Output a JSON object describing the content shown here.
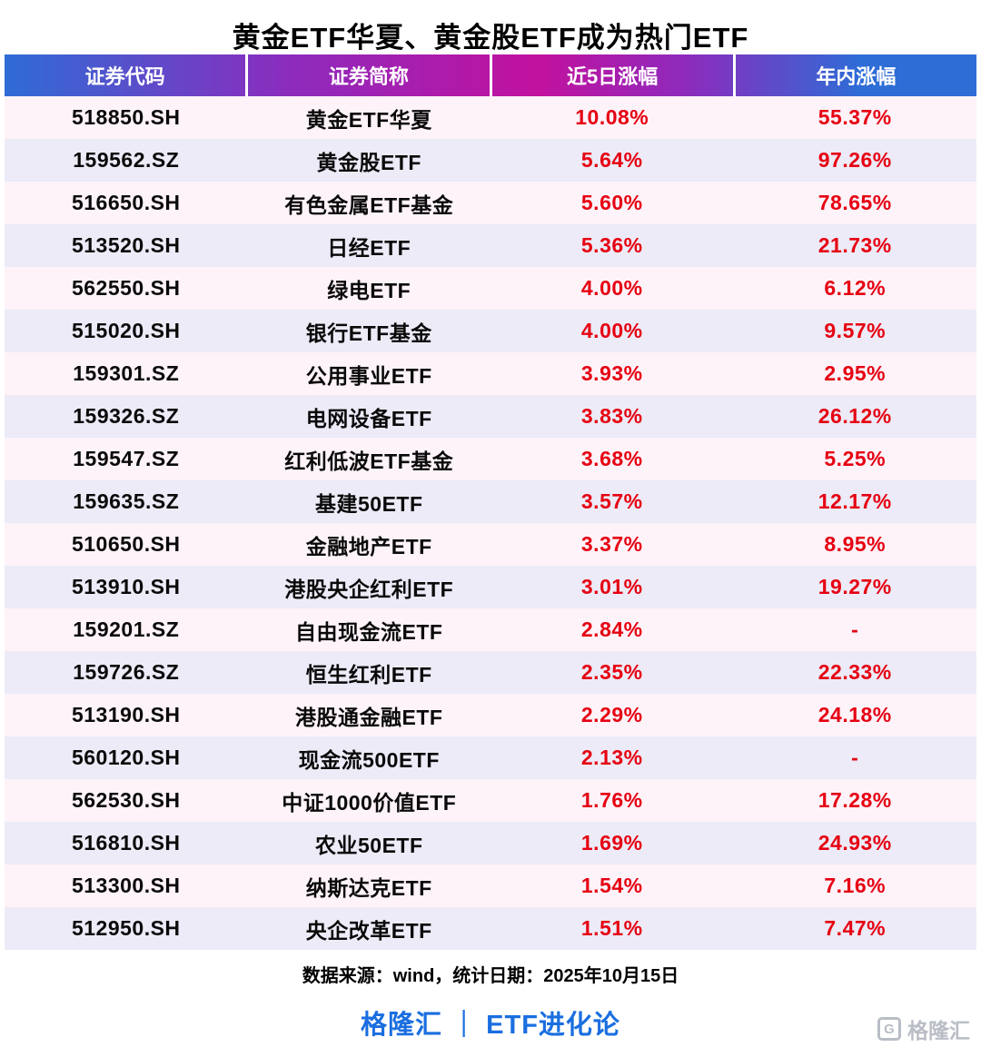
{
  "title": "黄金ETF华夏、黄金股ETF成为热门ETF",
  "chart_data": {
    "type": "table",
    "title": "黄金ETF华夏、黄金股ETF成为热门ETF",
    "columns": [
      "证券代码",
      "证券简称",
      "近5日涨幅",
      "年内涨幅"
    ],
    "rows": [
      [
        "518850.SH",
        "黄金ETF华夏",
        "10.08%",
        "55.37%"
      ],
      [
        "159562.SZ",
        "黄金股ETF",
        "5.64%",
        "97.26%"
      ],
      [
        "516650.SH",
        "有色金属ETF基金",
        "5.60%",
        "78.65%"
      ],
      [
        "513520.SH",
        "日经ETF",
        "5.36%",
        "21.73%"
      ],
      [
        "562550.SH",
        "绿电ETF",
        "4.00%",
        "6.12%"
      ],
      [
        "515020.SH",
        "银行ETF基金",
        "4.00%",
        "9.57%"
      ],
      [
        "159301.SZ",
        "公用事业ETF",
        "3.93%",
        "2.95%"
      ],
      [
        "159326.SZ",
        "电网设备ETF",
        "3.83%",
        "26.12%"
      ],
      [
        "159547.SZ",
        "红利低波ETF基金",
        "3.68%",
        "5.25%"
      ],
      [
        "159635.SZ",
        "基建50ETF",
        "3.57%",
        "12.17%"
      ],
      [
        "510650.SH",
        "金融地产ETF",
        "3.37%",
        "8.95%"
      ],
      [
        "513910.SH",
        "港股央企红利ETF",
        "3.01%",
        "19.27%"
      ],
      [
        "159201.SZ",
        "自由现金流ETF",
        "2.84%",
        "-"
      ],
      [
        "159726.SZ",
        "恒生红利ETF",
        "2.35%",
        "22.33%"
      ],
      [
        "513190.SH",
        "港股通金融ETF",
        "2.29%",
        "24.18%"
      ],
      [
        "560120.SH",
        "现金流500ETF",
        "2.13%",
        "-"
      ],
      [
        "562530.SH",
        "中证1000价值ETF",
        "1.76%",
        "17.28%"
      ],
      [
        "516810.SH",
        "农业50ETF",
        "1.69%",
        "24.93%"
      ],
      [
        "513300.SH",
        "纳斯达克ETF",
        "1.54%",
        "7.16%"
      ],
      [
        "512950.SH",
        "央企改革ETF",
        "1.51%",
        "7.47%"
      ]
    ]
  },
  "footer": {
    "source": "数据来源：wind，统计日期：2025年10月15日",
    "brand": "格隆汇 ｜ ETF进化论",
    "watermark": "格隆汇"
  },
  "colors": {
    "header_blue": "#2e6cd6",
    "header_purple": "#8e2abc",
    "header_magenta": "#c2119e",
    "header_text": "#ffffff",
    "value_red": "#e60012",
    "brand_blue": "#1a6ee0",
    "row_pink": "#fdf3f9",
    "row_lavender": "#ecebf7",
    "watermark_gray": "#b9bdc6",
    "text_black": "#0a0a0a"
  }
}
